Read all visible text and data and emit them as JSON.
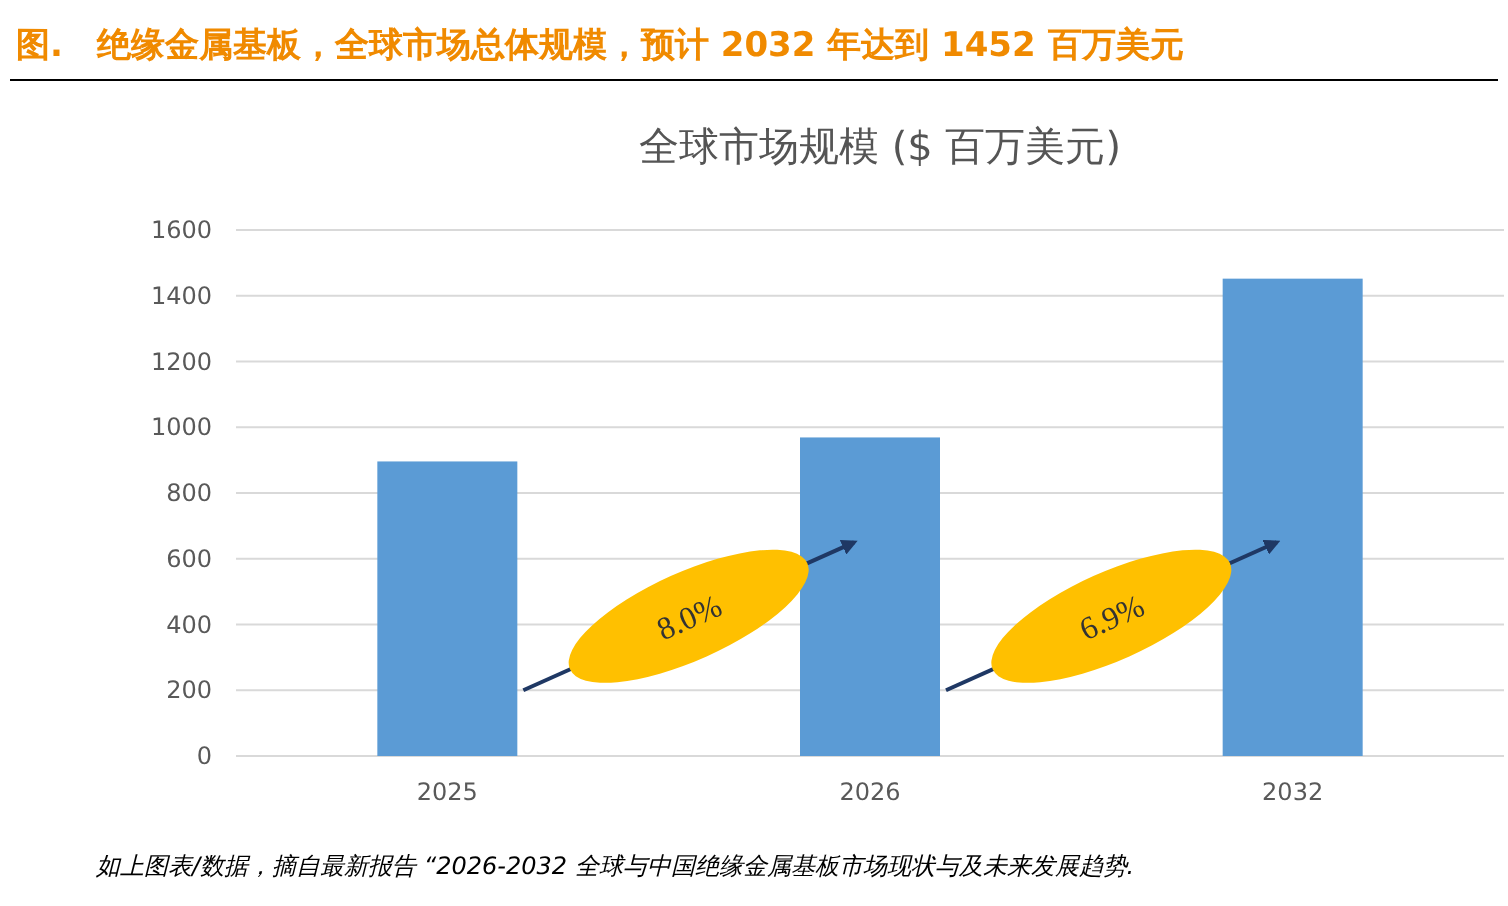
{
  "chart_data": {
    "type": "bar",
    "title": "图.　绝缘金属基板，全球市场总体规模，预计 2032 年达到 1452 百万美元",
    "subtitle": "全球市场规模 ($ 百万美元)",
    "categories": [
      "2025",
      "2026",
      "2032"
    ],
    "values": [
      896,
      969,
      1452
    ],
    "color": "#5b9bd5",
    "ylim": [
      0,
      1600
    ],
    "yticks": [
      0,
      200,
      400,
      600,
      800,
      1000,
      1200,
      1400,
      1600
    ],
    "grid": "y",
    "annotations": [
      "8.0%",
      "6.9%",
      "如上图表/数据，摘自最新报告 “2026-2032 全球与中国绝缘金属基板市场现状与及未来发展趋势."
    ]
  }
}
